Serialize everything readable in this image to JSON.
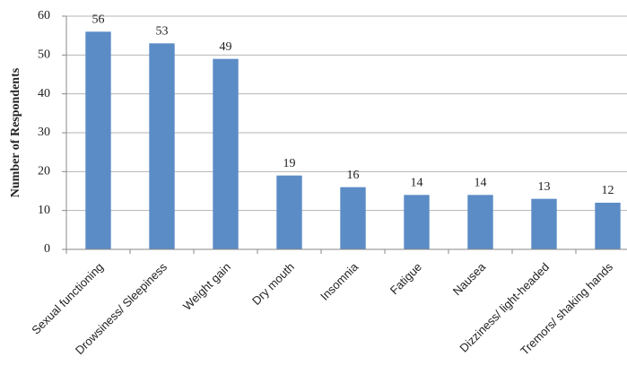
{
  "chart_data": {
    "type": "bar",
    "y_label": "Number of Respondents",
    "categories": [
      "Sexual functioning",
      "Drowsiness/ Sleepiness",
      "Weight gain",
      "Dry mouth",
      "Insomnia",
      "Fatigue",
      "Nausea",
      "Dizziness/ light-headed",
      "Tremors/ shaking hands"
    ],
    "values": [
      56,
      53,
      49,
      19,
      16,
      14,
      14,
      13,
      12
    ],
    "color": "#5b8cc6",
    "ylim": [
      0,
      60
    ],
    "yticks": [
      0,
      10,
      20,
      30,
      40,
      50,
      60
    ],
    "grid": true
  }
}
